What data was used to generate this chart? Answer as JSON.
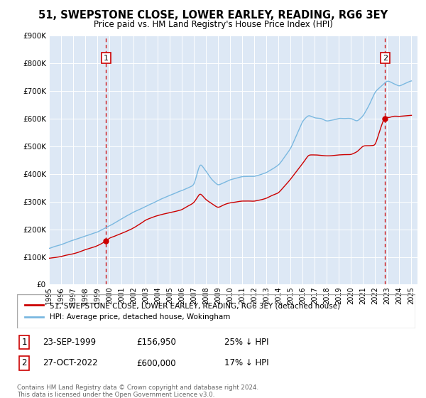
{
  "title": "51, SWEPSTONE CLOSE, LOWER EARLEY, READING, RG6 3EY",
  "subtitle": "Price paid vs. HM Land Registry's House Price Index (HPI)",
  "legend_line1": "51, SWEPSTONE CLOSE, LOWER EARLEY, READING, RG6 3EY (detached house)",
  "legend_line2": "HPI: Average price, detached house, Wokingham",
  "footnote": "Contains HM Land Registry data © Crown copyright and database right 2024.\nThis data is licensed under the Open Government Licence v3.0.",
  "sale1_label": "1",
  "sale1_date": "23-SEP-1999",
  "sale1_price": "£156,950",
  "sale1_hpi": "25% ↓ HPI",
  "sale2_label": "2",
  "sale2_date": "27-OCT-2022",
  "sale2_price": "£600,000",
  "sale2_hpi": "17% ↓ HPI",
  "sale1_x": 1999.73,
  "sale1_y": 156950,
  "sale2_x": 2022.82,
  "sale2_y": 600000,
  "hpi_color": "#7ab8e0",
  "price_color": "#cc0000",
  "dashed_line_color": "#cc0000",
  "bg_color": "#dde8f5",
  "ylim": [
    0,
    900000
  ],
  "xlim": [
    1995.0,
    2025.5
  ],
  "yticks": [
    0,
    100000,
    200000,
    300000,
    400000,
    500000,
    600000,
    700000,
    800000,
    900000
  ],
  "xticks": [
    1995,
    1996,
    1997,
    1998,
    1999,
    2000,
    2001,
    2002,
    2003,
    2004,
    2005,
    2006,
    2007,
    2008,
    2009,
    2010,
    2011,
    2012,
    2013,
    2014,
    2015,
    2016,
    2017,
    2018,
    2019,
    2020,
    2021,
    2022,
    2023,
    2024,
    2025
  ],
  "hpi_key_years": [
    1995,
    1996,
    1997,
    1998,
    1999,
    2000,
    2001,
    2002,
    2003,
    2004,
    2005,
    2006,
    2007,
    2007.5,
    2008,
    2008.5,
    2009,
    2009.5,
    2010,
    2011,
    2012,
    2013,
    2014,
    2015,
    2016,
    2016.5,
    2017,
    2017.5,
    2018,
    2018.5,
    2019,
    2019.5,
    2020,
    2020.5,
    2021,
    2021.5,
    2022,
    2022.5,
    2023,
    2023.5,
    2024,
    2024.5,
    2025
  ],
  "hpi_key_vals": [
    130000,
    145000,
    163000,
    178000,
    192000,
    215000,
    240000,
    265000,
    285000,
    305000,
    325000,
    340000,
    360000,
    440000,
    410000,
    380000,
    360000,
    370000,
    380000,
    390000,
    390000,
    405000,
    430000,
    490000,
    590000,
    610000,
    600000,
    600000,
    590000,
    595000,
    600000,
    600000,
    600000,
    590000,
    610000,
    650000,
    700000,
    720000,
    740000,
    730000,
    720000,
    730000,
    740000
  ],
  "price_key_years": [
    1995,
    1996,
    1997,
    1998,
    1999,
    1999.73,
    2000,
    2001,
    2002,
    2003,
    2004,
    2005,
    2006,
    2007,
    2007.5,
    2008,
    2008.5,
    2009,
    2009.5,
    2010,
    2011,
    2012,
    2013,
    2014,
    2015,
    2016,
    2016.5,
    2017,
    2018,
    2019,
    2020,
    2020.5,
    2021,
    2022,
    2022.5,
    2022.82,
    2023,
    2023.5,
    2024,
    2025
  ],
  "price_key_vals": [
    95000,
    100000,
    110000,
    125000,
    140000,
    156950,
    168000,
    185000,
    205000,
    235000,
    250000,
    260000,
    270000,
    295000,
    330000,
    305000,
    290000,
    275000,
    285000,
    290000,
    295000,
    295000,
    305000,
    325000,
    375000,
    430000,
    460000,
    460000,
    455000,
    460000,
    460000,
    470000,
    490000,
    490000,
    560000,
    600000,
    590000,
    595000,
    595000,
    600000
  ]
}
